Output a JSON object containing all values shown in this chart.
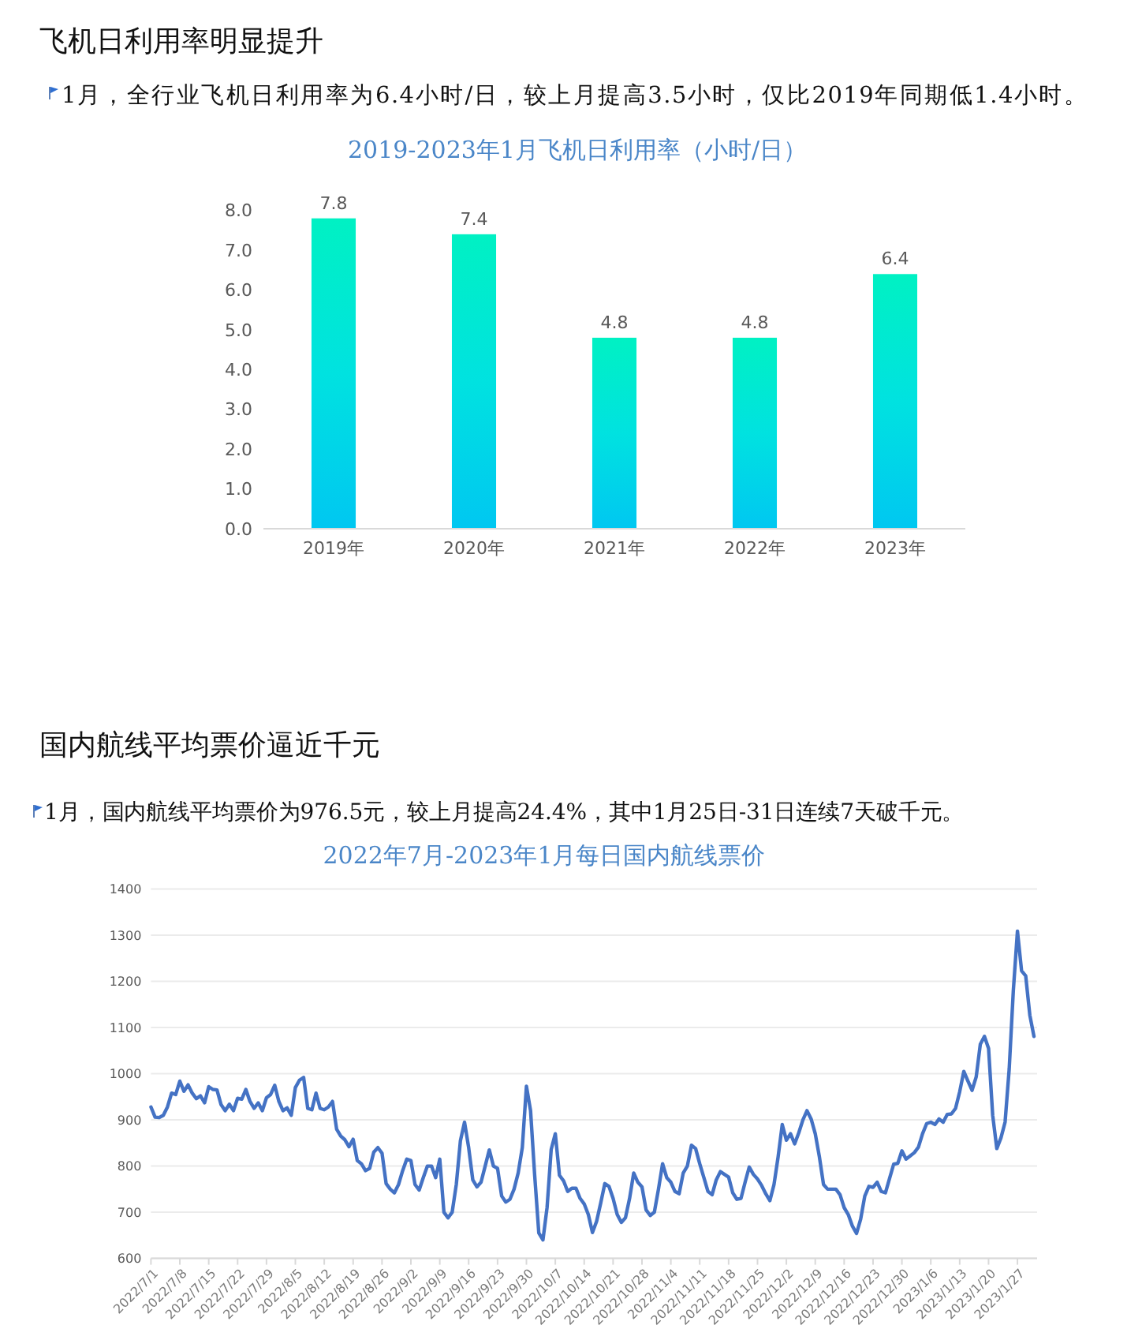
{
  "chart_data": [
    {
      "type": "bar",
      "title": "2019-2023年1月飞机日利用率（小时/日）",
      "annotations": [
        "飞机日利用率明显提升",
        "1月，全行业飞机日利用率为6.4小时/日，较上月提高3.5小时，仅比2019年同期低1.4小时。"
      ],
      "categories": [
        "2019年",
        "2020年",
        "2021年",
        "2022年",
        "2023年"
      ],
      "values": [
        7.8,
        7.4,
        4.8,
        4.8,
        6.4
      ],
      "color": "#00e2e0",
      "ylim": [
        0,
        8
      ],
      "yticks": [
        {
          "value": 0,
          "label": "0.0"
        },
        {
          "value": 1,
          "label": "1.0"
        },
        {
          "value": 2,
          "label": "2.0"
        },
        {
          "value": 3,
          "label": "3.0"
        },
        {
          "value": 4,
          "label": "4.0"
        },
        {
          "value": 5,
          "label": "5.0"
        },
        {
          "value": 6,
          "label": "6.0"
        },
        {
          "value": 7,
          "label": "7.0"
        },
        {
          "value": 8,
          "label": "8.0"
        }
      ],
      "data_labels": true
    },
    {
      "type": "line",
      "title": "2022年7月-2023年1月每日国内航线票价",
      "annotations": [
        "国内航线平均票价逼近千元",
        "1月，国内航线平均票价为976.5元，较上月提高24.4%，其中1月25日-31日连续7天破千元。"
      ],
      "x": [
        "2022-07-01",
        "2022-07-02",
        "2022-07-03",
        "2022-07-04",
        "2022-07-05",
        "2022-07-06",
        "2022-07-07",
        "2022-07-08",
        "2022-07-09",
        "2022-07-10",
        "2022-07-11",
        "2022-07-12",
        "2022-07-13",
        "2022-07-14",
        "2022-07-15",
        "2022-07-16",
        "2022-07-17",
        "2022-07-18",
        "2022-07-19",
        "2022-07-20",
        "2022-07-21",
        "2022-07-22",
        "2022-07-23",
        "2022-07-24",
        "2022-07-25",
        "2022-07-26",
        "2022-07-27",
        "2022-07-28",
        "2022-07-29",
        "2022-07-30",
        "2022-07-31",
        "2022-08-01",
        "2022-08-02",
        "2022-08-03",
        "2022-08-04",
        "2022-08-05",
        "2022-08-06",
        "2022-08-07",
        "2022-08-08",
        "2022-08-09",
        "2022-08-10",
        "2022-08-11",
        "2022-08-12",
        "2022-08-13",
        "2022-08-14",
        "2022-08-15",
        "2022-08-16",
        "2022-08-17",
        "2022-08-18",
        "2022-08-19",
        "2022-08-20",
        "2022-08-21",
        "2022-08-22",
        "2022-08-23",
        "2022-08-24",
        "2022-08-25",
        "2022-08-26",
        "2022-08-27",
        "2022-08-28",
        "2022-08-29",
        "2022-08-30",
        "2022-08-31",
        "2022-09-01",
        "2022-09-02",
        "2022-09-03",
        "2022-09-04",
        "2022-09-05",
        "2022-09-06",
        "2022-09-07",
        "2022-09-08",
        "2022-09-09",
        "2022-09-10",
        "2022-09-11",
        "2022-09-12",
        "2022-09-13",
        "2022-09-14",
        "2022-09-15",
        "2022-09-16",
        "2022-09-17",
        "2022-09-18",
        "2022-09-19",
        "2022-09-20",
        "2022-09-21",
        "2022-09-22",
        "2022-09-23",
        "2022-09-24",
        "2022-09-25",
        "2022-09-26",
        "2022-09-27",
        "2022-09-28",
        "2022-09-29",
        "2022-09-30",
        "2022-10-01",
        "2022-10-02",
        "2022-10-03",
        "2022-10-04",
        "2022-10-05",
        "2022-10-06",
        "2022-10-07",
        "2022-10-08",
        "2022-10-09",
        "2022-10-10",
        "2022-10-11",
        "2022-10-12",
        "2022-10-13",
        "2022-10-14",
        "2022-10-15",
        "2022-10-16",
        "2022-10-17",
        "2022-10-18",
        "2022-10-19",
        "2022-10-20",
        "2022-10-21",
        "2022-10-22",
        "2022-10-23",
        "2022-10-24",
        "2022-10-25",
        "2022-10-26",
        "2022-10-27",
        "2022-10-28",
        "2022-10-29",
        "2022-10-30",
        "2022-10-31",
        "2022-11-01",
        "2022-11-02",
        "2022-11-03",
        "2022-11-04",
        "2022-11-05",
        "2022-11-06",
        "2022-11-07",
        "2022-11-08",
        "2022-11-09",
        "2022-11-10",
        "2022-11-11",
        "2022-11-12",
        "2022-11-13",
        "2022-11-14",
        "2022-11-15",
        "2022-11-16",
        "2022-11-17",
        "2022-11-18",
        "2022-11-19",
        "2022-11-20",
        "2022-11-21",
        "2022-11-22",
        "2022-11-23",
        "2022-11-24",
        "2022-11-25",
        "2022-11-26",
        "2022-11-27",
        "2022-11-28",
        "2022-11-29",
        "2022-11-30",
        "2022-12-01",
        "2022-12-02",
        "2022-12-03",
        "2022-12-04",
        "2022-12-05",
        "2022-12-06",
        "2022-12-07",
        "2022-12-08",
        "2022-12-09",
        "2022-12-10",
        "2022-12-11",
        "2022-12-12",
        "2022-12-13",
        "2022-12-14",
        "2022-12-15",
        "2022-12-16",
        "2022-12-17",
        "2022-12-18",
        "2022-12-19",
        "2022-12-20",
        "2022-12-21",
        "2022-12-22",
        "2022-12-23",
        "2022-12-24",
        "2022-12-25",
        "2022-12-26",
        "2022-12-27",
        "2022-12-28",
        "2022-12-29",
        "2022-12-30",
        "2022-12-31",
        "2023-01-01",
        "2023-01-02",
        "2023-01-03",
        "2023-01-04",
        "2023-01-05",
        "2023-01-06",
        "2023-01-07",
        "2023-01-08",
        "2023-01-09",
        "2023-01-10",
        "2023-01-11",
        "2023-01-12",
        "2023-01-13",
        "2023-01-14",
        "2023-01-15",
        "2023-01-16",
        "2023-01-17",
        "2023-01-18",
        "2023-01-19",
        "2023-01-20",
        "2023-01-21",
        "2023-01-22",
        "2023-01-23",
        "2023-01-24",
        "2023-01-25",
        "2023-01-26",
        "2023-01-27",
        "2023-01-28",
        "2023-01-29",
        "2023-01-30",
        "2023-01-31"
      ],
      "values": [
        928,
        906,
        905,
        910,
        928,
        958,
        955,
        984,
        962,
        976,
        958,
        946,
        952,
        937,
        972,
        966,
        965,
        933,
        920,
        934,
        920,
        947,
        945,
        966,
        940,
        925,
        937,
        920,
        948,
        955,
        975,
        940,
        920,
        926,
        910,
        970,
        986,
        992,
        925,
        922,
        958,
        925,
        922,
        928,
        940,
        880,
        865,
        857,
        842,
        858,
        812,
        805,
        790,
        795,
        830,
        840,
        828,
        762,
        750,
        742,
        760,
        790,
        815,
        812,
        760,
        748,
        775,
        800,
        800,
        775,
        815,
        700,
        688,
        700,
        760,
        855,
        895,
        840,
        770,
        755,
        765,
        800,
        835,
        800,
        795,
        735,
        722,
        728,
        750,
        785,
        840,
        973,
        920,
        780,
        655,
        640,
        710,
        836,
        870,
        780,
        768,
        745,
        752,
        752,
        730,
        718,
        695,
        656,
        680,
        720,
        762,
        756,
        730,
        695,
        678,
        688,
        730,
        785,
        765,
        755,
        705,
        693,
        700,
        750,
        805,
        775,
        765,
        745,
        740,
        785,
        800,
        845,
        838,
        805,
        775,
        745,
        738,
        770,
        788,
        782,
        776,
        742,
        728,
        730,
        765,
        798,
        782,
        772,
        758,
        740,
        725,
        760,
        820,
        890,
        856,
        870,
        848,
        872,
        900,
        920,
        902,
        870,
        820,
        760,
        750,
        750,
        750,
        738,
        710,
        695,
        670,
        654,
        685,
        735,
        756,
        754,
        765,
        745,
        742,
        773,
        804,
        806,
        833,
        815,
        822,
        829,
        841,
        870,
        892,
        895,
        890,
        902,
        895,
        912,
        913,
        925,
        961,
        1005,
        984,
        964,
        993,
        1064,
        1081,
        1055,
        910,
        838,
        861,
        895,
        1010,
        1180,
        1309,
        1223,
        1212,
        1127,
        1081
      ],
      "color": "#4472c4",
      "marker": "none",
      "line_style": "solid",
      "xlim": [
        "2022-07-01",
        "2023-01-31"
      ],
      "xticks": [
        {
          "value": "2022-07-01",
          "label": "2022/7/1"
        },
        {
          "value": "2022-07-08",
          "label": "2022/7/8"
        },
        {
          "value": "2022-07-15",
          "label": "2022/7/15"
        },
        {
          "value": "2022-07-22",
          "label": "2022/7/22"
        },
        {
          "value": "2022-07-29",
          "label": "2022/7/29"
        },
        {
          "value": "2022-08-05",
          "label": "2022/8/5"
        },
        {
          "value": "2022-08-12",
          "label": "2022/8/12"
        },
        {
          "value": "2022-08-19",
          "label": "2022/8/19"
        },
        {
          "value": "2022-08-26",
          "label": "2022/8/26"
        },
        {
          "value": "2022-09-02",
          "label": "2022/9/2"
        },
        {
          "value": "2022-09-09",
          "label": "2022/9/9"
        },
        {
          "value": "2022-09-16",
          "label": "2022/9/16"
        },
        {
          "value": "2022-09-23",
          "label": "2022/9/23"
        },
        {
          "value": "2022-09-30",
          "label": "2022/9/30"
        },
        {
          "value": "2022-10-07",
          "label": "2022/10/7"
        },
        {
          "value": "2022-10-14",
          "label": "2022/10/14"
        },
        {
          "value": "2022-10-21",
          "label": "2022/10/21"
        },
        {
          "value": "2022-10-28",
          "label": "2022/10/28"
        },
        {
          "value": "2022-11-04",
          "label": "2022/11/4"
        },
        {
          "value": "2022-11-11",
          "label": "2022/11/11"
        },
        {
          "value": "2022-11-18",
          "label": "2022/11/18"
        },
        {
          "value": "2022-11-25",
          "label": "2022/11/25"
        },
        {
          "value": "2022-12-02",
          "label": "2022/12/2"
        },
        {
          "value": "2022-12-09",
          "label": "2022/12/9"
        },
        {
          "value": "2022-12-16",
          "label": "2022/12/16"
        },
        {
          "value": "2022-12-23",
          "label": "2022/12/23"
        },
        {
          "value": "2022-12-30",
          "label": "2022/12/30"
        },
        {
          "value": "2023-01-06",
          "label": "2023/1/6"
        },
        {
          "value": "2023-01-13",
          "label": "2023/1/13"
        },
        {
          "value": "2023-01-20",
          "label": "2023/1/20"
        },
        {
          "value": "2023-01-27",
          "label": "2023/1/27"
        }
      ],
      "ylim": [
        600,
        1400
      ],
      "yticks": [
        600,
        700,
        800,
        900,
        1000,
        1100,
        1200,
        1300,
        1400
      ],
      "grid": "y"
    }
  ]
}
